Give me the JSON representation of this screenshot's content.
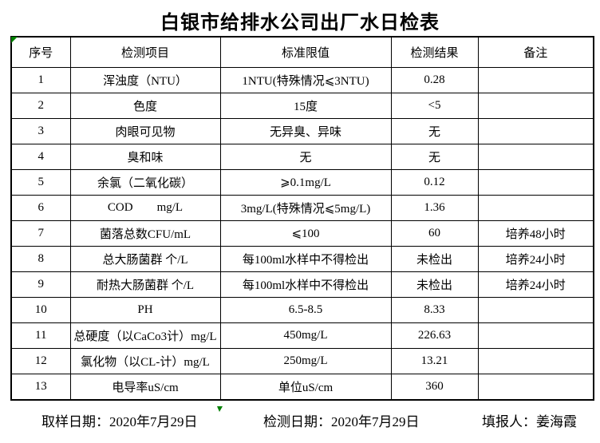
{
  "title": "白银市给排水公司出厂水日检表",
  "table": {
    "headers": [
      "序号",
      "检测项目",
      "标准限值",
      "检测结果",
      "备注"
    ],
    "rows": [
      {
        "index": "1",
        "item": "浑浊度（NTU）",
        "standard": "1NTU(特殊情况⩽3NTU)",
        "result": "0.28",
        "remark": ""
      },
      {
        "index": "2",
        "item": "色度",
        "standard": "15度",
        "result": "<5",
        "remark": ""
      },
      {
        "index": "3",
        "item": "肉眼可见物",
        "standard": "无异臭、异味",
        "result": "无",
        "remark": ""
      },
      {
        "index": "4",
        "item": "臭和味",
        "standard": "无",
        "result": "无",
        "remark": ""
      },
      {
        "index": "5",
        "item": "余氯（二氧化碳）",
        "standard": "⩾0.1mg/L",
        "result": "0.12",
        "remark": ""
      },
      {
        "index": "6",
        "item": "COD        mg/L",
        "standard": "3mg/L(特殊情况⩽5mg/L)",
        "result": "1.36",
        "remark": ""
      },
      {
        "index": "7",
        "item": "菌落总数CFU/mL",
        "standard": "⩽100",
        "result": "60",
        "remark": "培养48小时"
      },
      {
        "index": "8",
        "item": "总大肠菌群 个/L",
        "standard": "每100ml水样中不得检出",
        "result": "未检出",
        "remark": "培养24小时"
      },
      {
        "index": "9",
        "item": "耐热大肠菌群 个/L",
        "standard": "每100ml水样中不得检出",
        "result": "未检出",
        "remark": "培养24小时"
      },
      {
        "index": "10",
        "item": "PH",
        "standard": "6.5-8.5",
        "result": "8.33",
        "remark": ""
      },
      {
        "index": "11",
        "item": "总硬度（以CaCo3计）mg/L",
        "standard": "450mg/L",
        "result": "226.63",
        "remark": ""
      },
      {
        "index": "12",
        "item": "氯化物（以CL-计）mg/L",
        "standard": "250mg/L",
        "result": "13.21",
        "remark": ""
      },
      {
        "index": "13",
        "item": "电导率uS/cm",
        "standard": "单位uS/cm",
        "result": "360",
        "remark": ""
      }
    ]
  },
  "footer": {
    "sample_date_label": "取样日期：",
    "sample_date": "2020年7月29日",
    "test_date_label": "检测日期：",
    "test_date": "2020年7月29日",
    "reporter_label": "填报人：",
    "reporter": "姜海霞"
  },
  "colors": {
    "marker_green": "#008000",
    "border": "#000000",
    "background": "#ffffff",
    "text": "#000000"
  }
}
